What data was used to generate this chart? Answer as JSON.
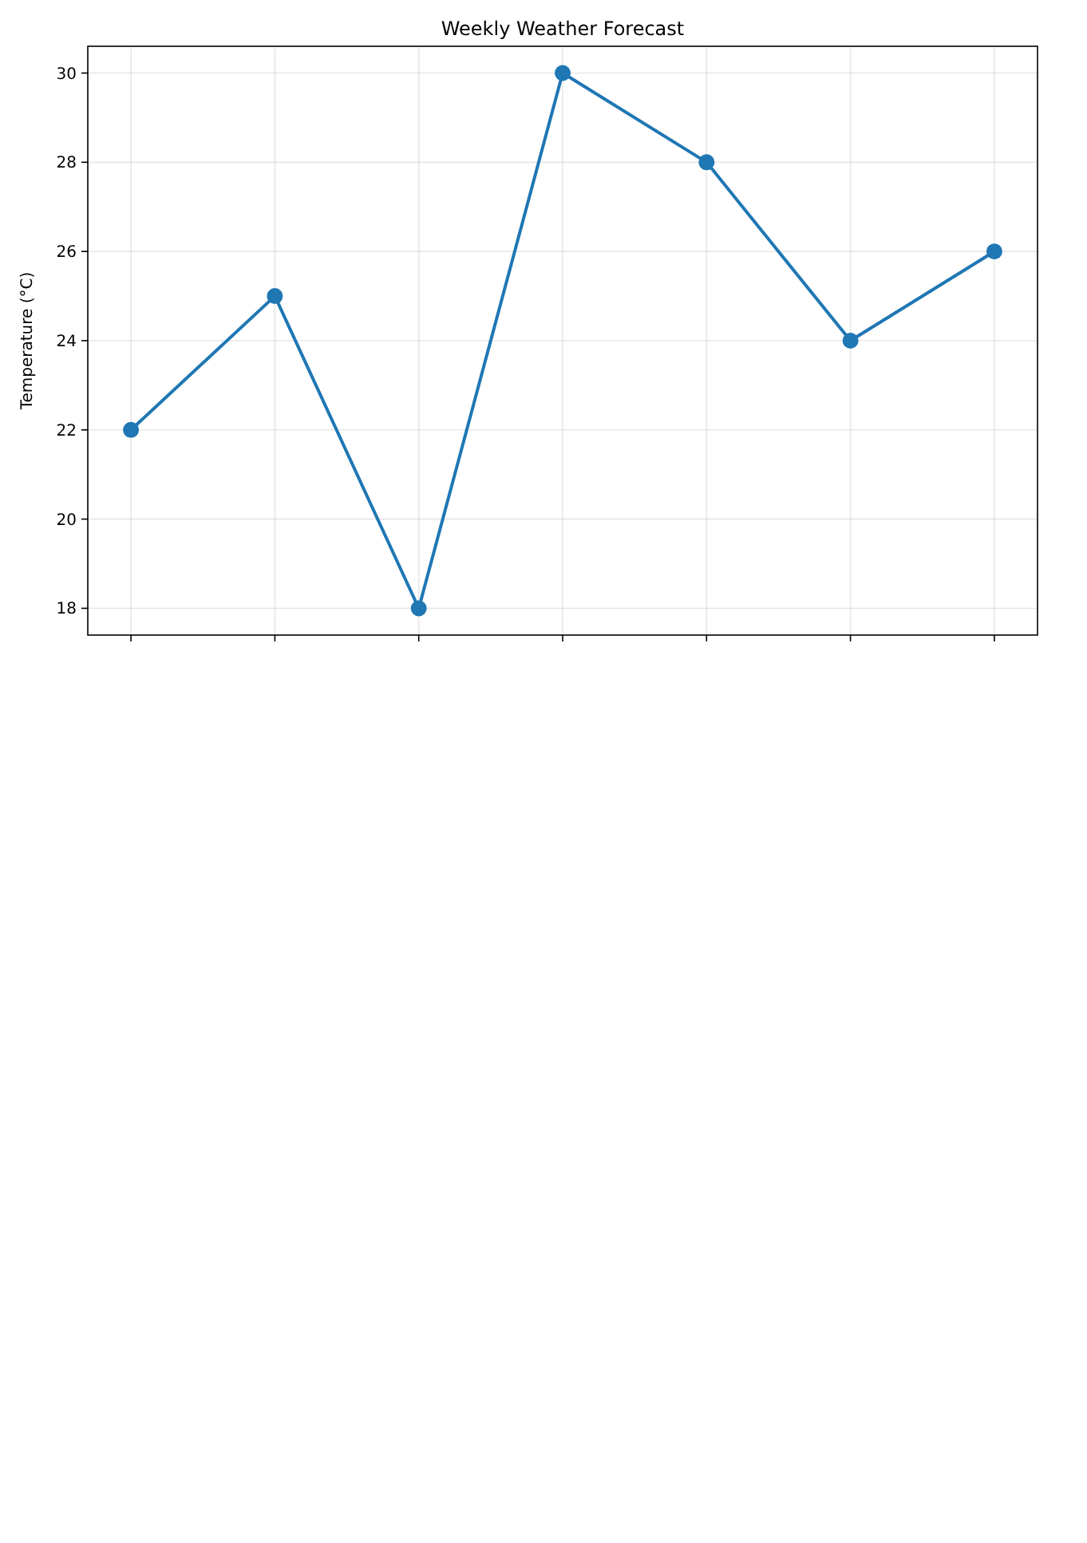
{
  "chart_data": {
    "type": "line",
    "title": "Weekly Weather Forecast",
    "ylabel": "Temperature (°C)",
    "categories": [
      null,
      null,
      null,
      null,
      null,
      null,
      null
    ],
    "series": [
      {
        "color": "#1f77b4",
        "values": [
          22,
          25,
          18,
          30,
          28,
          24,
          26
        ]
      }
    ],
    "ylim": [
      17.4,
      30.6
    ],
    "yticks": [
      18,
      20,
      22,
      24,
      26,
      28,
      30
    ],
    "grid": true,
    "marker": "circle",
    "line_style": "solid",
    "tick_labels": "y"
  }
}
